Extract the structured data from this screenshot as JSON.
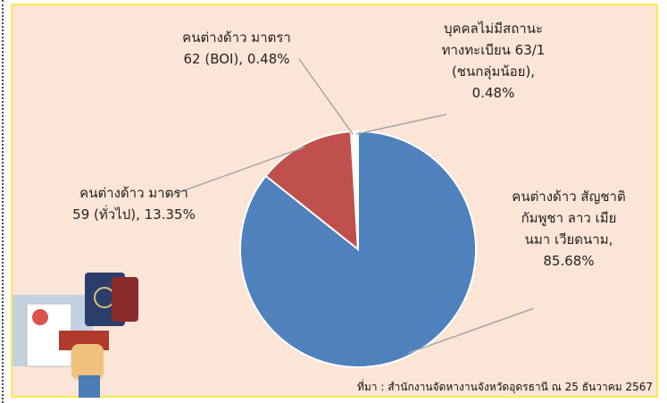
{
  "chart_data": {
    "type": "pie",
    "categories": [
      "คนต่างด้าว สัญชาติกัมพูชา ลาว เมียนมา เวียดนาม,",
      "คนต่างด้าว มาตรา 59 (ทั่วไป),",
      "คนต่างด้าว มาตรา 62 (BOI),",
      "บุคคลไม่มีสถานะ ทางทะเบียน 63/1 (ชนกลุ่มน้อย),"
    ],
    "values": [
      85.68,
      13.35,
      0.48,
      0.48
    ],
    "value_labels": [
      "85.68%",
      "13.35%",
      "0.48%",
      "0.48%"
    ],
    "colors": [
      "#4f81bd",
      "#c0504d",
      "#f7f7f7",
      "#f7f7f7"
    ],
    "source": "ที่มา : สำนักงานจัดหางานจังหวัดอุดรธานี ณ 25 ธันวาคม 2567"
  }
}
